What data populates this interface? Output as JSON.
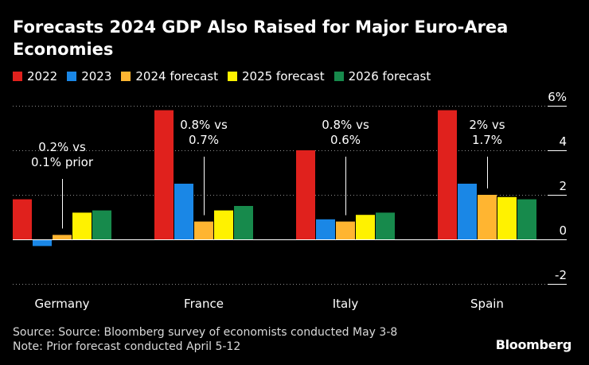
{
  "chart_data": {
    "type": "bar",
    "title": "Forecasts 2024 GDP Also Raised for Major Euro-Area Economies",
    "categories": [
      "Germany",
      "France",
      "Italy",
      "Spain"
    ],
    "series": [
      {
        "name": "2022",
        "color": "#e0211d",
        "values": [
          1.8,
          5.8,
          4.0,
          5.8
        ]
      },
      {
        "name": "2023",
        "color": "#1a87e6",
        "values": [
          -0.3,
          2.5,
          0.9,
          2.5
        ]
      },
      {
        "name": "2024 forecast",
        "color": "#ffb531",
        "values": [
          0.2,
          0.8,
          0.8,
          2.0
        ]
      },
      {
        "name": "2025 forecast",
        "color": "#fff200",
        "values": [
          1.2,
          1.3,
          1.1,
          1.9
        ]
      },
      {
        "name": "2026 forecast",
        "color": "#178a4c",
        "values": [
          1.3,
          1.5,
          1.2,
          1.8
        ]
      }
    ],
    "ylim": [
      -2,
      6
    ],
    "yticks": [
      {
        "value": 6,
        "label": "6%"
      },
      {
        "value": 4,
        "label": "4"
      },
      {
        "value": 2,
        "label": "2"
      },
      {
        "value": 0,
        "label": "0"
      },
      {
        "value": -2,
        "label": "-2"
      }
    ],
    "annotations": [
      {
        "category": "Germany",
        "lines": [
          "0.2% vs",
          "0.1% prior"
        ]
      },
      {
        "category": "France",
        "lines": [
          "0.8% vs",
          "0.7%"
        ]
      },
      {
        "category": "Italy",
        "lines": [
          "0.8% vs",
          "0.6%"
        ]
      },
      {
        "category": "Spain",
        "lines": [
          "2% vs",
          "1.7%"
        ]
      }
    ],
    "xlabel": "",
    "ylabel": ""
  },
  "footer": {
    "source": "Source: Source: Bloomberg survey of economists conducted May 3-8",
    "note": "Note: Prior forecast conducted April 5-12"
  },
  "brand": "Bloomberg"
}
